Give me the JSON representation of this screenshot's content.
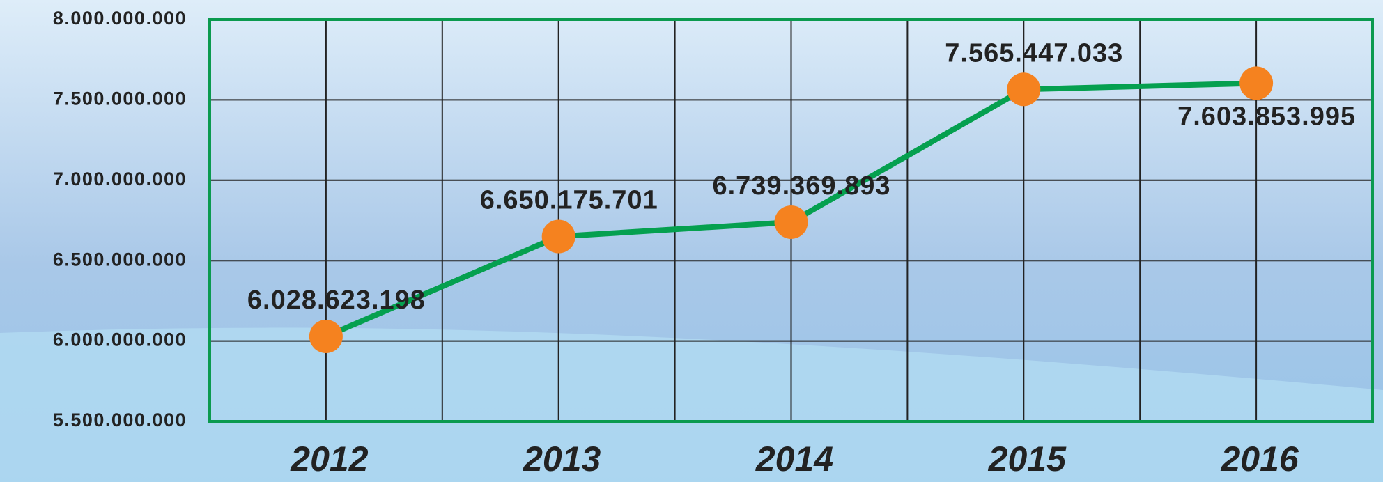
{
  "chart_data": {
    "type": "line",
    "categories": [
      "2012",
      "2013",
      "2014",
      "2015",
      "2016"
    ],
    "series": [
      {
        "name": null,
        "color": "#05a04f",
        "marker_color": "#f5821f",
        "values": [
          6028623198,
          6650175701,
          6739369893,
          7565447033,
          7603853995
        ],
        "value_labels": [
          "6.028.623.198",
          "6.650.175.701",
          "6.739.369.893",
          "7.565.447.033",
          "7.603.853.995"
        ]
      }
    ],
    "ylim": [
      5500000000,
      8000000000
    ],
    "yticks": [
      {
        "value": 5500000000,
        "label": "5.500.000.000"
      },
      {
        "value": 6000000000,
        "label": "6.000.000.000"
      },
      {
        "value": 6500000000,
        "label": "6.500.000.000"
      },
      {
        "value": 7000000000,
        "label": "7.000.000.000"
      },
      {
        "value": 7500000000,
        "label": "7.500.000.000"
      },
      {
        "value": 8000000000,
        "label": "8.000.000.000"
      }
    ],
    "grid": true
  }
}
